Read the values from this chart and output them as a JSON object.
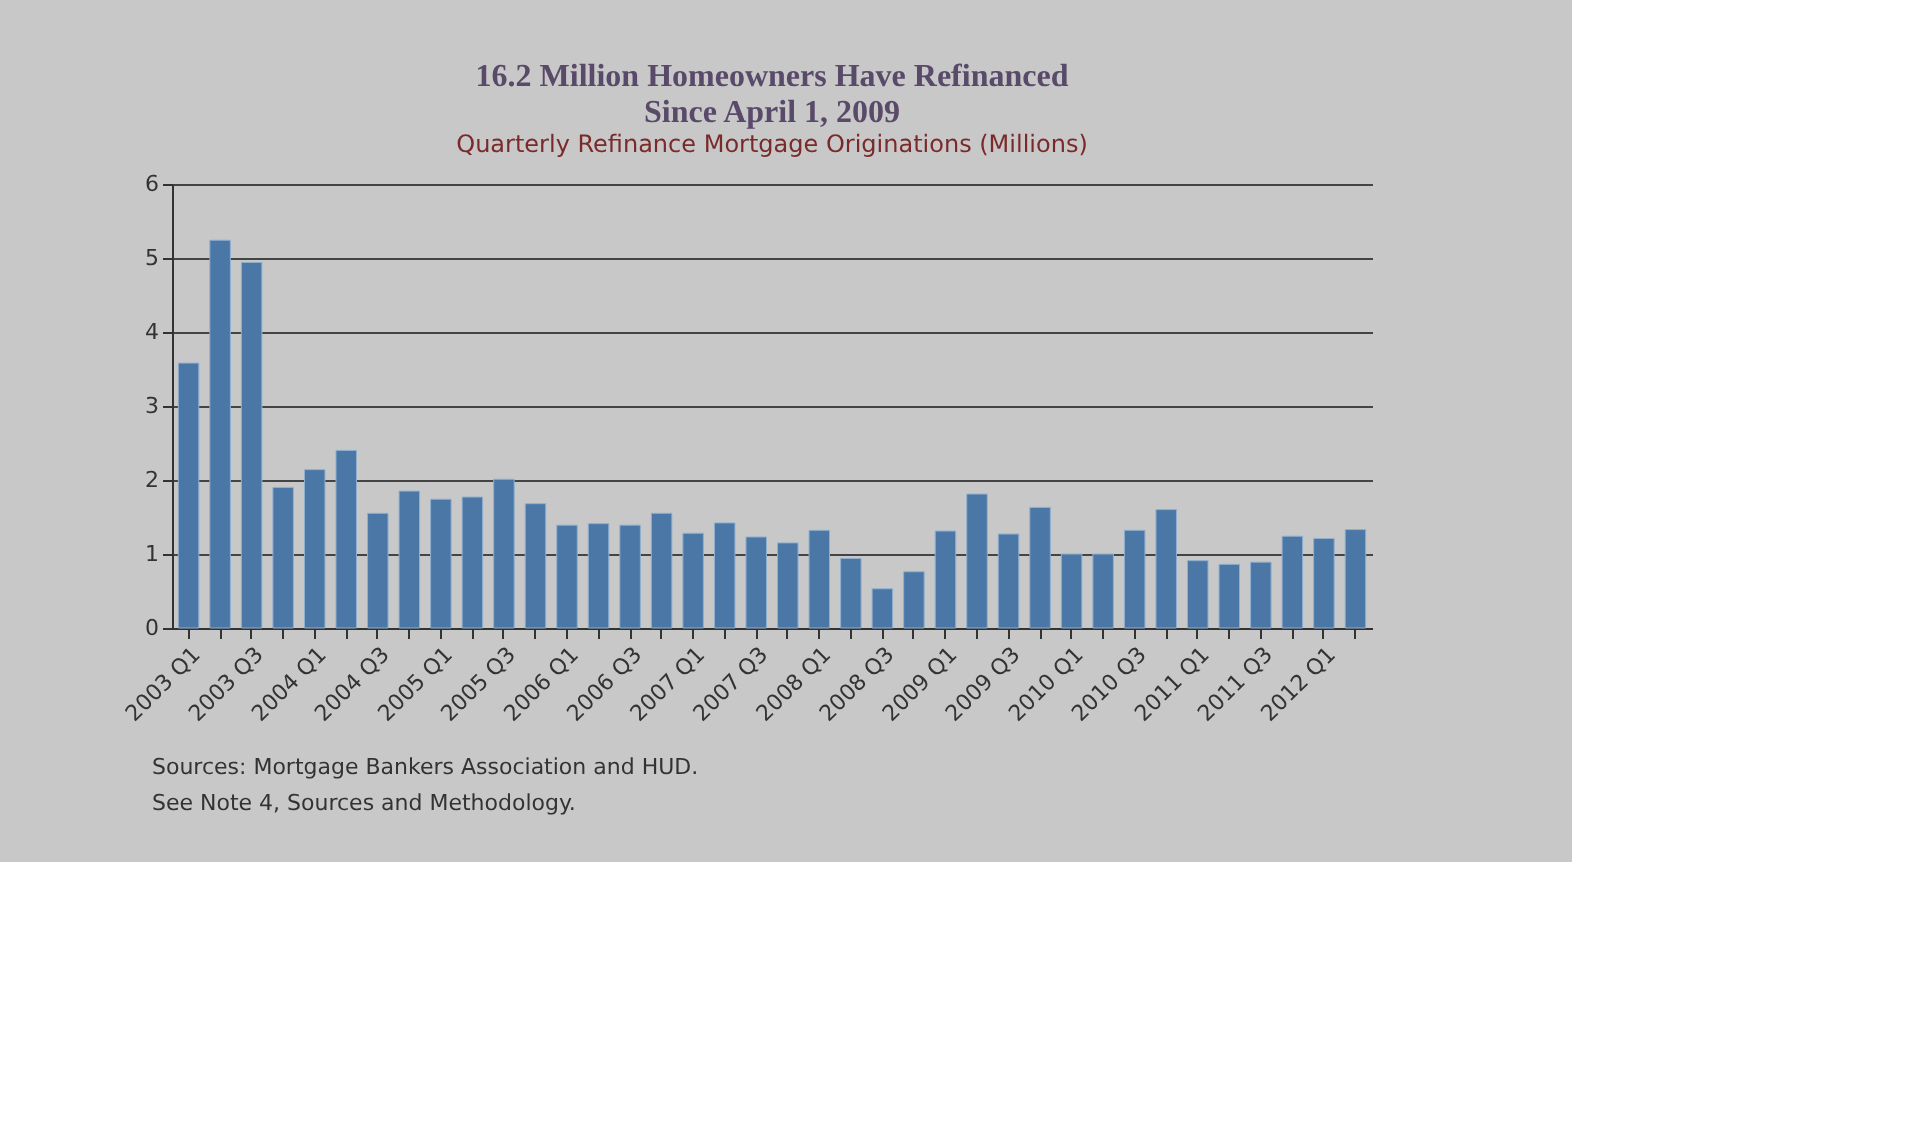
{
  "chart_data": {
    "type": "bar",
    "title": [
      "16.2 Million Homeowners Have Refinanced",
      "Since April 1, 2009"
    ],
    "subtitle": "Quarterly Refinance Mortgage Originations (Millions)",
    "categories": [
      "2003 Q1",
      null,
      "2003 Q3",
      null,
      "2004 Q1",
      null,
      "2004 Q3",
      null,
      "2005 Q1",
      null,
      "2005 Q3",
      null,
      "2006 Q1",
      null,
      "2006 Q3",
      null,
      "2007 Q1",
      null,
      "2007 Q3",
      null,
      "2008 Q1",
      null,
      "2008 Q3",
      null,
      "2009 Q1",
      null,
      "2009 Q3",
      null,
      "2010 Q1",
      null,
      "2010 Q3",
      null,
      "2011 Q1",
      null,
      "2011 Q3",
      null,
      "2012 Q1",
      null
    ],
    "values": [
      3.58,
      5.24,
      4.94,
      1.9,
      2.14,
      2.4,
      1.55,
      1.85,
      1.74,
      1.77,
      2.01,
      1.68,
      1.39,
      1.41,
      1.39,
      1.55,
      1.28,
      1.42,
      1.23,
      1.15,
      1.32,
      0.94,
      0.53,
      0.76,
      1.31,
      1.81,
      1.27,
      1.63,
      1.0,
      1.0,
      1.32,
      1.6,
      0.91,
      0.86,
      0.89,
      1.24,
      1.21,
      1.33
    ],
    "color": "#4a77a6",
    "ylim": [
      0,
      6
    ],
    "yticks": [
      0,
      1,
      2,
      3,
      4,
      5,
      6
    ],
    "grid": "y",
    "annotations": [
      "Sources:  Mortgage Bankers Association and HUD.",
      "See Note 4, Sources and Methodology."
    ]
  }
}
